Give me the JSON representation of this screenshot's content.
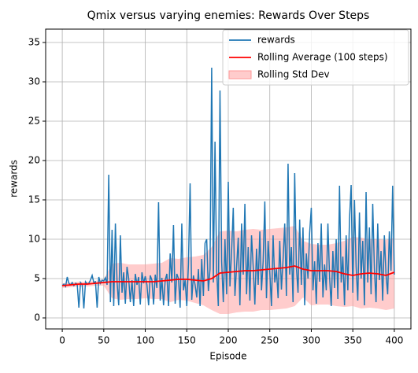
{
  "chart_data": {
    "type": "line",
    "title": "Qmix versus varying enemies: Rewards Over Steps",
    "xlabel": "Episode",
    "ylabel": "rewards",
    "xlim": [
      -20,
      420
    ],
    "ylim": [
      -1.4,
      36.7
    ],
    "xticks": [
      0,
      50,
      100,
      150,
      200,
      250,
      300,
      350,
      400
    ],
    "yticks": [
      0,
      5,
      10,
      15,
      20,
      25,
      30,
      35
    ],
    "grid": true,
    "legend": "upper right",
    "series": [
      {
        "name": "rewards",
        "color": "#1f77b4",
        "kind": "line",
        "x": [
          0,
          2,
          4,
          6,
          8,
          10,
          12,
          14,
          16,
          18,
          20,
          22,
          24,
          26,
          28,
          30,
          32,
          34,
          36,
          38,
          40,
          42,
          44,
          46,
          48,
          50,
          52,
          54,
          56,
          58,
          60,
          62,
          64,
          66,
          68,
          70,
          72,
          74,
          76,
          78,
          80,
          82,
          84,
          86,
          88,
          90,
          92,
          94,
          96,
          98,
          100,
          102,
          104,
          106,
          108,
          110,
          112,
          114,
          116,
          118,
          120,
          122,
          124,
          126,
          128,
          130,
          132,
          134,
          136,
          138,
          140,
          142,
          144,
          146,
          148,
          150,
          152,
          154,
          156,
          158,
          160,
          162,
          164,
          166,
          168,
          170,
          172,
          174,
          176,
          178,
          180,
          182,
          184,
          186,
          188,
          190,
          192,
          194,
          196,
          198,
          200,
          202,
          204,
          206,
          208,
          210,
          212,
          214,
          216,
          218,
          220,
          222,
          224,
          226,
          228,
          230,
          232,
          234,
          236,
          238,
          240,
          242,
          244,
          246,
          248,
          250,
          252,
          254,
          256,
          258,
          260,
          262,
          264,
          266,
          268,
          270,
          272,
          274,
          276,
          278,
          280,
          282,
          284,
          286,
          288,
          290,
          292,
          294,
          296,
          298,
          300,
          302,
          304,
          306,
          308,
          310,
          312,
          314,
          316,
          318,
          320,
          322,
          324,
          326,
          328,
          330,
          332,
          334,
          336,
          338,
          340,
          342,
          344,
          346,
          348,
          350,
          352,
          354,
          356,
          358,
          360,
          362,
          364,
          366,
          368,
          370,
          372,
          374,
          376,
          378,
          380,
          382,
          384,
          386,
          388,
          390,
          392,
          394,
          396,
          398,
          400
        ],
        "values": [
          4.1,
          4.3,
          4.0,
          5.2,
          4.4,
          4.2,
          4.5,
          4.1,
          4.4,
          4.3,
          1.3,
          4.5,
          4.2,
          1.2,
          4.6,
          4.3,
          4.4,
          4.8,
          5.4,
          4.5,
          4.6,
          1.3,
          5.2,
          4.4,
          4.8,
          4.7,
          5.1,
          4.2,
          18.2,
          2.0,
          11.2,
          1.5,
          12.0,
          4.6,
          1.6,
          10.5,
          3.2,
          5.8,
          1.8,
          6.5,
          5.0,
          2.0,
          4.8,
          1.5,
          5.6,
          4.2,
          5.2,
          1.7,
          5.8,
          4.4,
          5.3,
          4.2,
          1.6,
          5.4,
          4.8,
          1.7,
          5.5,
          3.8,
          14.7,
          2.2,
          5.1,
          1.6,
          4.8,
          5.6,
          1.5,
          8.2,
          4.5,
          11.8,
          1.8,
          5.6,
          5.0,
          1.3,
          12.0,
          3.5,
          4.8,
          1.5,
          6.8,
          17.1,
          2.3,
          5.4,
          4.2,
          2.6,
          6.2,
          1.5,
          7.5,
          2.8,
          9.5,
          10.0,
          3.4,
          6.2,
          31.8,
          4.5,
          22.4,
          6.0,
          1.5,
          28.9,
          7.2,
          2.0,
          10.0,
          3.0,
          17.3,
          4.0,
          8.5,
          14.0,
          2.8,
          6.5,
          10.2,
          1.6,
          12.0,
          5.5,
          14.5,
          3.0,
          9.0,
          2.2,
          10.5,
          6.5,
          1.7,
          8.8,
          4.2,
          11.0,
          3.5,
          7.2,
          14.8,
          2.5,
          9.8,
          5.8,
          1.5,
          10.5,
          4.5,
          6.2,
          2.5,
          9.8,
          3.6,
          7.4,
          12.0,
          2.8,
          19.6,
          5.5,
          9.0,
          2.0,
          18.4,
          6.5,
          3.2,
          12.5,
          4.2,
          11.5,
          1.6,
          8.2,
          5.0,
          10.8,
          14.0,
          3.5,
          7.2,
          1.8,
          9.5,
          4.6,
          12.0,
          2.6,
          6.8,
          3.5,
          12.0,
          5.2,
          1.5,
          8.5,
          3.8,
          10.0,
          2.4,
          16.8,
          4.5,
          7.8,
          1.6,
          10.5,
          3.5,
          12.5,
          16.9,
          3.2,
          15.0,
          6.5,
          2.2,
          13.4,
          5.0,
          9.8,
          1.6,
          16.0,
          4.5,
          11.5,
          3.0,
          14.5,
          6.2,
          2.0,
          12.0,
          4.8,
          8.5,
          2.2,
          10.5,
          5.5,
          3.0,
          11.0,
          6.0,
          16.8,
          5.5
        ]
      },
      {
        "name": "Rolling Average (100 steps)",
        "color": "#ff0000",
        "kind": "line",
        "x": [
          0,
          10,
          20,
          30,
          40,
          50,
          60,
          70,
          80,
          90,
          100,
          110,
          120,
          130,
          140,
          150,
          160,
          170,
          180,
          190,
          200,
          210,
          220,
          230,
          240,
          250,
          260,
          270,
          280,
          290,
          300,
          310,
          320,
          330,
          340,
          350,
          360,
          370,
          380,
          390,
          400
        ],
        "values": [
          4.1,
          4.2,
          4.3,
          4.3,
          4.4,
          4.5,
          4.6,
          4.6,
          4.6,
          4.6,
          4.6,
          4.6,
          4.7,
          4.8,
          4.9,
          4.9,
          4.8,
          4.7,
          5.0,
          5.7,
          5.8,
          5.9,
          6.0,
          6.0,
          6.1,
          6.2,
          6.3,
          6.4,
          6.6,
          6.2,
          6.0,
          6.0,
          6.0,
          5.9,
          5.6,
          5.4,
          5.6,
          5.7,
          5.6,
          5.4,
          5.8
        ]
      },
      {
        "name": "Rolling Std Dev",
        "color": "#ff9999",
        "kind": "band",
        "x": [
          0,
          10,
          20,
          30,
          40,
          50,
          60,
          70,
          80,
          90,
          100,
          110,
          120,
          130,
          140,
          150,
          160,
          170,
          180,
          190,
          200,
          210,
          220,
          230,
          240,
          250,
          260,
          270,
          280,
          290,
          300,
          310,
          320,
          330,
          340,
          350,
          360,
          370,
          380,
          390,
          400
        ],
        "upper": [
          4.4,
          4.5,
          4.6,
          4.6,
          4.7,
          4.9,
          6.9,
          7.0,
          6.8,
          6.8,
          6.8,
          6.9,
          7.0,
          7.6,
          7.5,
          7.7,
          7.8,
          8.0,
          9.0,
          11.0,
          11.1,
          11.0,
          11.2,
          11.3,
          11.2,
          11.3,
          11.4,
          11.5,
          11.7,
          9.8,
          9.4,
          9.3,
          9.3,
          9.5,
          9.8,
          10.3,
          10.2,
          10.0,
          10.0,
          9.9,
          10.2
        ],
        "lower": [
          3.8,
          3.9,
          4.0,
          4.0,
          4.1,
          4.1,
          2.5,
          2.3,
          2.4,
          2.4,
          2.5,
          2.4,
          2.4,
          2.0,
          2.3,
          2.2,
          1.9,
          1.6,
          1.0,
          0.5,
          0.5,
          0.7,
          0.8,
          0.8,
          1.0,
          1.0,
          1.1,
          1.2,
          1.5,
          2.6,
          1.6,
          1.7,
          1.7,
          1.5,
          1.4,
          1.5,
          1.2,
          1.3,
          1.2,
          1.0,
          1.2
        ]
      }
    ]
  }
}
